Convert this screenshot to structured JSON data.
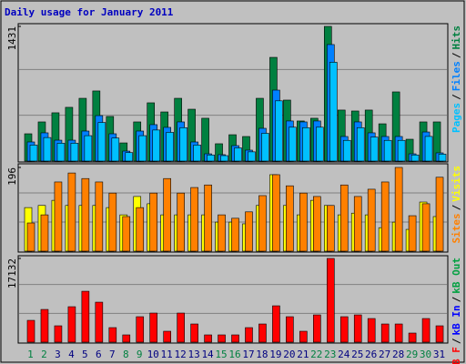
{
  "chart_data": [
    {
      "type": "bar",
      "title": "Daily usage for January 2011",
      "ylim": [
        0,
        1431
      ],
      "yticks": [
        1431
      ],
      "legend_separator": "/",
      "series": [
        {
          "name": "Pages",
          "color": "#00c0ff",
          "values": [
            170,
            250,
            190,
            190,
            270,
            410,
            245,
            90,
            270,
            330,
            305,
            355,
            170,
            65,
            58,
            140,
            98,
            295,
            640,
            360,
            355,
            360,
            1050,
            220,
            355,
            255,
            220,
            220,
            65,
            262,
            74
          ]
        },
        {
          "name": "Files",
          "color": "#0080ff",
          "values": [
            203,
            300,
            222,
            222,
            319,
            483,
            290,
            106,
            319,
            387,
            358,
            416,
            203,
            77,
            68,
            164,
            116,
            348,
            754,
            426,
            416,
            426,
            1238,
            261,
            416,
            300,
            261,
            261,
            77,
            309,
            87
          ]
        },
        {
          "name": "Hits",
          "color": "#008040",
          "values": [
            290,
            416,
            513,
            571,
            667,
            745,
            474,
            193,
            416,
            619,
            522,
            667,
            551,
            455,
            184,
            280,
            261,
            667,
            1102,
            648,
            426,
            455,
            1431,
            542,
            532,
            542,
            396,
            735,
            232,
            416,
            416
          ]
        }
      ]
    },
    {
      "type": "bar",
      "ylim": [
        0,
        196
      ],
      "yticks": [
        196
      ],
      "legend_separator": "/",
      "series": [
        {
          "name": "Sites",
          "color": "#ff8000",
          "values": [
            66,
            85,
            162,
            183,
            170,
            162,
            136,
            81,
            102,
            136,
            170,
            136,
            149,
            155,
            85,
            77,
            92,
            130,
            179,
            153,
            136,
            128,
            107,
            155,
            128,
            145,
            162,
            196,
            83,
            111,
            173
          ]
        },
        {
          "name": "Visits",
          "color": "#ffff00",
          "values": [
            102,
            107,
            119,
            107,
            107,
            107,
            102,
            85,
            128,
            111,
            85,
            85,
            85,
            85,
            68,
            68,
            64,
            107,
            179,
            107,
            85,
            119,
            107,
            85,
            89,
            85,
            55,
            68,
            51,
            115,
            81
          ]
        }
      ]
    },
    {
      "type": "bar",
      "ylim": [
        0,
        17132
      ],
      "yticks": [
        17132
      ],
      "legend_separator": "/",
      "series": [
        {
          "name": "kB F",
          "color": "#ff0000",
          "values": [
            4464,
            6696,
            3348,
            7254,
            10416,
            8184,
            2976,
            1488,
            5208,
            5952,
            2232,
            5952,
            3720,
            1488,
            1488,
            1488,
            2976,
            3720,
            7440,
            5208,
            2232,
            5580,
            17132,
            5208,
            5580,
            4836,
            3720,
            3720,
            1860,
            4836,
            3348
          ]
        }
      ],
      "extra_legend": [
        {
          "name": "kB In",
          "color": "#0000ff"
        },
        {
          "name": "kB Out",
          "color": "#00a040"
        }
      ],
      "categories": [
        "1",
        "2",
        "3",
        "4",
        "5",
        "6",
        "7",
        "8",
        "9",
        "10",
        "11",
        "12",
        "13",
        "14",
        "15",
        "16",
        "17",
        "18",
        "19",
        "20",
        "21",
        "22",
        "23",
        "24",
        "25",
        "26",
        "27",
        "28",
        "29",
        "30",
        "31"
      ],
      "category_colors": [
        "#008040",
        "#008040",
        "#000080",
        "#000080",
        "#000080",
        "#000080",
        "#000080",
        "#008040",
        "#008040",
        "#000080",
        "#000080",
        "#000080",
        "#000080",
        "#000080",
        "#008040",
        "#008040",
        "#000080",
        "#000080",
        "#000080",
        "#000080",
        "#000080",
        "#008040",
        "#008040",
        "#000080",
        "#000080",
        "#000080",
        "#000080",
        "#000080",
        "#008040",
        "#008040",
        "#000080"
      ]
    }
  ]
}
